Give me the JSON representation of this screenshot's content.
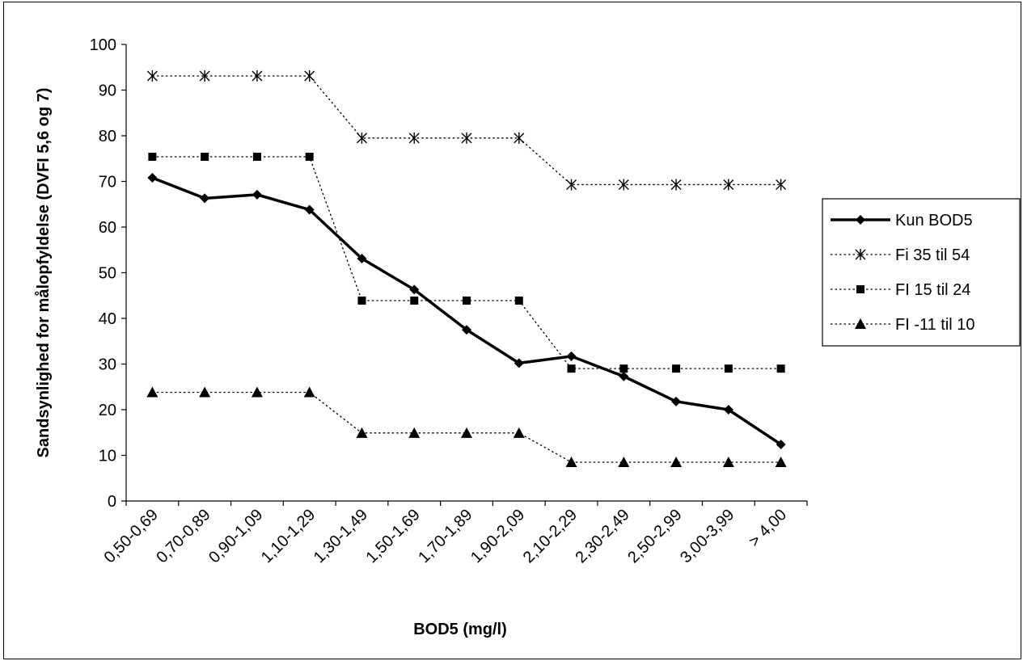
{
  "chart_data": {
    "type": "line",
    "title": "",
    "xlabel": "BOD5 (mg/l)",
    "ylabel": "Sandsynlighed for målopfyldelse (DVFI 5,6 og 7)",
    "ylim": [
      0,
      100
    ],
    "yticks": [
      0,
      10,
      20,
      30,
      40,
      50,
      60,
      70,
      80,
      90,
      100
    ],
    "grid": false,
    "legend_position": "right",
    "categories": [
      "0,50-0,69",
      "0,70-0,89",
      "0,90-1,09",
      "1,10-1,29",
      "1,30-1,49",
      "1,50-1,69",
      "1,70-1,89",
      "1,90-2,09",
      "2,10-2,29",
      "2,30-2,49",
      "2,50-2,99",
      "3,00-3,99",
      "> 4,00"
    ],
    "series": [
      {
        "name": "Kun BOD5",
        "marker": "diamond",
        "line_style": "solid",
        "color": "#000000",
        "values": [
          70.8,
          66.3,
          67.1,
          63.8,
          53.1,
          46.3,
          37.5,
          30.2,
          31.7,
          27.3,
          21.8,
          20.0,
          12.4
        ]
      },
      {
        "name": "Fi 35 til 54",
        "marker": "asterisk",
        "line_style": "dotted",
        "color": "#000000",
        "values": [
          93.1,
          93.1,
          93.1,
          93.1,
          79.5,
          79.5,
          79.5,
          79.5,
          69.3,
          69.3,
          69.3,
          69.3,
          69.3
        ]
      },
      {
        "name": "FI 15 til 24",
        "marker": "square",
        "line_style": "dotted",
        "color": "#000000",
        "values": [
          75.4,
          75.4,
          75.4,
          75.4,
          43.9,
          43.9,
          43.9,
          43.9,
          29.0,
          29.0,
          29.0,
          29.0,
          29.0
        ]
      },
      {
        "name": "FI -11 til 10",
        "marker": "triangle",
        "line_style": "dotted",
        "color": "#000000",
        "values": [
          23.8,
          23.8,
          23.8,
          23.8,
          14.9,
          14.9,
          14.9,
          14.9,
          8.5,
          8.5,
          8.5,
          8.5,
          8.5
        ]
      }
    ]
  }
}
